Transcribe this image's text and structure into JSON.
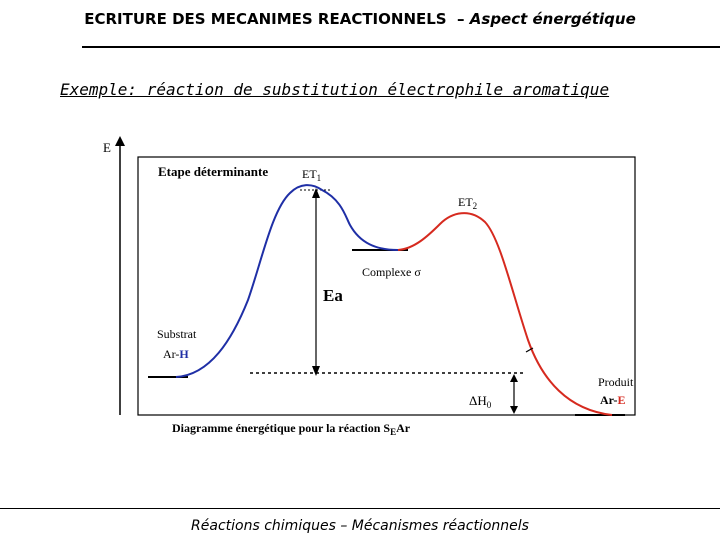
{
  "header": {
    "title_main": "ECRITURE DES MECANIMES REACTIONNELS",
    "title_sep": "  – ",
    "title_sub": "Aspect énergétique"
  },
  "example_heading": "Exemple: réaction de substitution électrophile aromatique",
  "diagram": {
    "axis_label_e": "E",
    "label_etape": "Etape déterminante",
    "label_et1": "ET",
    "label_et1_sub": "1",
    "label_et2": "ET",
    "label_et2_sub": "2",
    "label_complexe": "Complexe σ",
    "label_ea": "Ea",
    "label_substrat": "Substrat",
    "label_arh_prefix": "Ar-",
    "label_arh_suffix": "H",
    "label_dh": "ΔH",
    "label_dh_sub": "0",
    "label_produit": "Produit",
    "label_are_prefix": "Ar-",
    "label_are_suffix": "E",
    "caption_main": "Diagramme énergétique   pour la réaction S",
    "caption_sub": "E",
    "caption_end": "Ar",
    "colors": {
      "blue_curve": "#1f2fa6",
      "red_curve": "#d62a1f"
    }
  },
  "footer": "Réactions chimiques – Mécanismes réactionnels"
}
